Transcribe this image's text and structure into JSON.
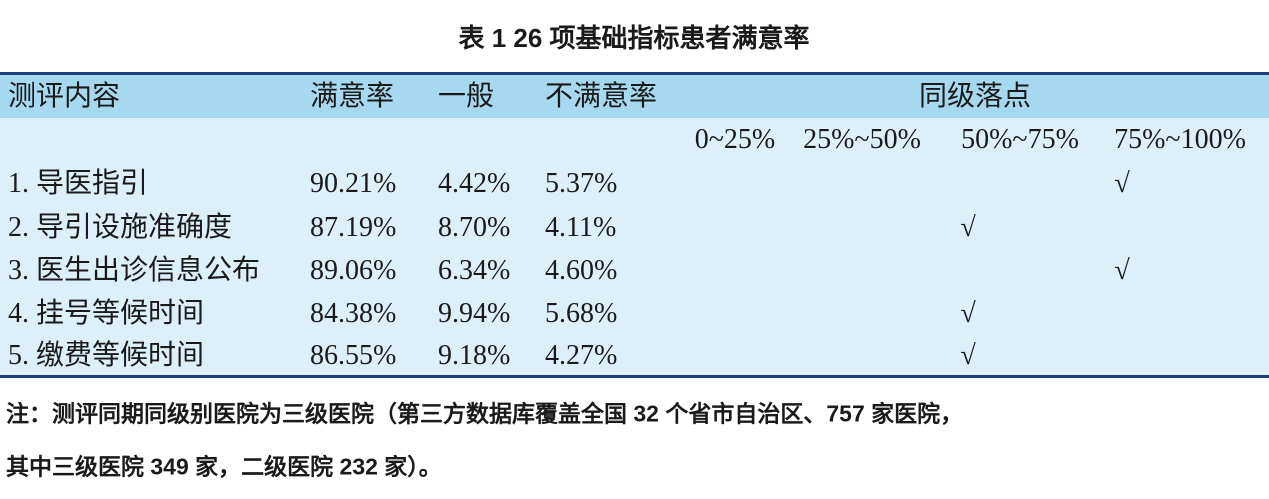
{
  "title": "表 1  26 项基础指标患者满意率",
  "table": {
    "header": [
      "测评内容",
      "满意率",
      "一般",
      "不满意率",
      "同级落点"
    ],
    "subheader": [
      "0~25%",
      "25%~50%",
      "50%~75%",
      "75%~100%"
    ],
    "rows": [
      {
        "label": "1. 导医指引",
        "values": [
          "90.21%",
          "4.42%",
          "5.37%"
        ],
        "landing": [
          null,
          null,
          null,
          "√"
        ]
      },
      {
        "label": "2. 导引设施准确度",
        "values": [
          "87.19%",
          "8.70%",
          "4.11%"
        ],
        "landing": [
          null,
          null,
          "√",
          null
        ]
      },
      {
        "label": "3. 医生出诊信息公布",
        "values": [
          "89.06%",
          "6.34%",
          "4.60%"
        ],
        "landing": [
          null,
          null,
          null,
          "√"
        ]
      },
      {
        "label": "4. 挂号等候时间",
        "values": [
          "84.38%",
          "9.94%",
          "5.68%"
        ],
        "landing": [
          null,
          null,
          "√",
          null
        ]
      },
      {
        "label": "5. 缴费等候时间",
        "values": [
          "86.55%",
          "9.18%",
          "4.27%"
        ],
        "landing": [
          null,
          null,
          "√",
          null
        ]
      }
    ]
  },
  "note": [
    "注：测评同期同级别医院为三级医院（第三方数据库覆盖全国 32 个省市自治区、757 家医院，",
    "其中三级医院 349 家，二级医院 232 家）。"
  ]
}
